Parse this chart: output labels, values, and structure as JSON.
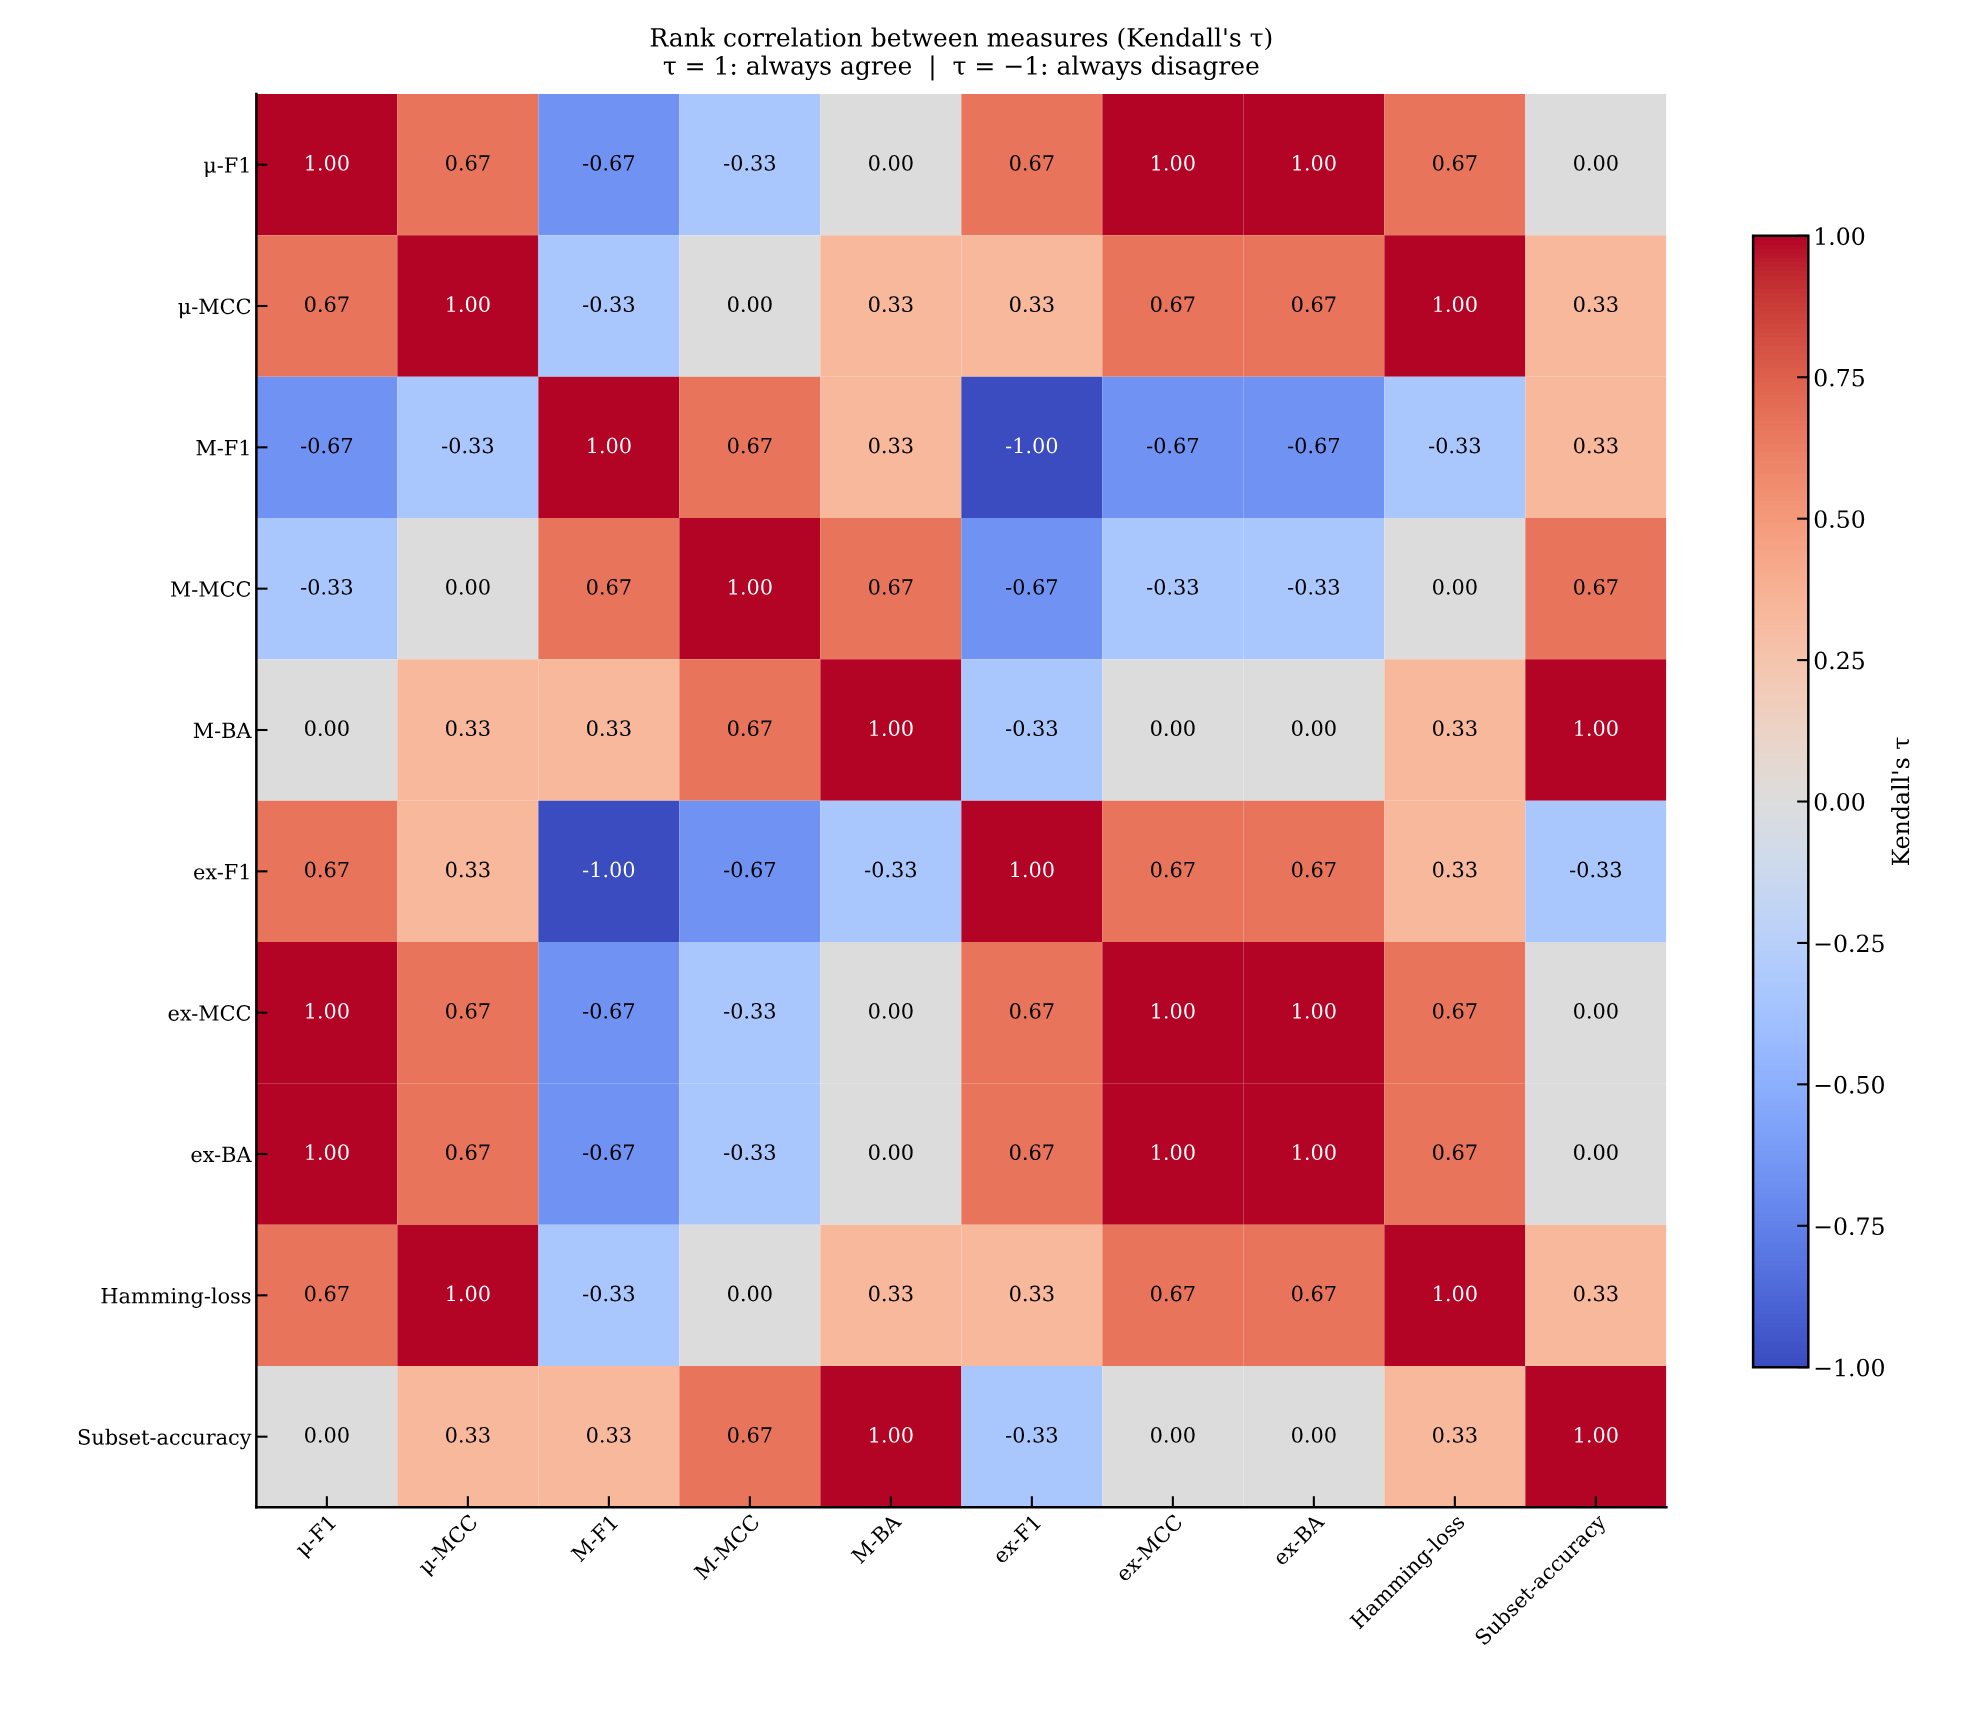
{
  "chart_data": {
    "type": "heatmap",
    "title": "Rank correlation between measures (Kendall's τ)",
    "subtitle": "τ = 1: always agree  |  τ = −1: always disagree",
    "categories": [
      "μ-F1",
      "μ-MCC",
      "M-F1",
      "M-MCC",
      "M-BA",
      "ex-F1",
      "ex-MCC",
      "ex-BA",
      "Hamming-loss",
      "Subset-accuracy"
    ],
    "y_categories": [
      "μ-F1",
      "μ-MCC",
      "M-F1",
      "M-MCC",
      "M-BA",
      "ex-F1",
      "ex-MCC",
      "ex-BA",
      "Hamming-loss",
      "Subset-accuracy"
    ],
    "cells": [
      [
        1.0,
        0.67,
        -0.67,
        -0.33,
        0.0,
        0.67,
        1.0,
        1.0,
        0.67,
        0.0
      ],
      [
        0.67,
        1.0,
        -0.33,
        0.0,
        0.33,
        0.33,
        0.67,
        0.67,
        1.0,
        0.33
      ],
      [
        -0.67,
        -0.33,
        1.0,
        0.67,
        0.33,
        -1.0,
        -0.67,
        -0.67,
        -0.33,
        0.33
      ],
      [
        -0.33,
        0.0,
        0.67,
        1.0,
        0.67,
        -0.67,
        -0.33,
        -0.33,
        0.0,
        0.67
      ],
      [
        0.0,
        0.33,
        0.33,
        0.67,
        1.0,
        -0.33,
        0.0,
        0.0,
        0.33,
        1.0
      ],
      [
        0.67,
        0.33,
        -1.0,
        -0.67,
        -0.33,
        1.0,
        0.67,
        0.67,
        0.33,
        -0.33
      ],
      [
        1.0,
        0.67,
        -0.67,
        -0.33,
        0.0,
        0.67,
        1.0,
        1.0,
        0.67,
        0.0
      ],
      [
        1.0,
        0.67,
        -0.67,
        -0.33,
        0.0,
        0.67,
        1.0,
        1.0,
        0.67,
        0.0
      ],
      [
        0.67,
        1.0,
        -0.33,
        0.0,
        0.33,
        0.33,
        0.67,
        0.67,
        1.0,
        0.33
      ],
      [
        0.0,
        0.33,
        0.33,
        0.67,
        1.0,
        -0.33,
        0.0,
        0.0,
        0.33,
        1.0
      ]
    ],
    "cell_labels": [
      [
        "1.00",
        "0.67",
        "-0.67",
        "-0.33",
        "0.00",
        "0.67",
        "1.00",
        "1.00",
        "0.67",
        "0.00"
      ],
      [
        "0.67",
        "1.00",
        "-0.33",
        "0.00",
        "0.33",
        "0.33",
        "0.67",
        "0.67",
        "1.00",
        "0.33"
      ],
      [
        "-0.67",
        "-0.33",
        "1.00",
        "0.67",
        "0.33",
        "-1.00",
        "-0.67",
        "-0.67",
        "-0.33",
        "0.33"
      ],
      [
        "-0.33",
        "0.00",
        "0.67",
        "1.00",
        "0.67",
        "-0.67",
        "-0.33",
        "-0.33",
        "0.00",
        "0.67"
      ],
      [
        "0.00",
        "0.33",
        "0.33",
        "0.67",
        "1.00",
        "-0.33",
        "0.00",
        "0.00",
        "0.33",
        "1.00"
      ],
      [
        "0.67",
        "0.33",
        "-1.00",
        "-0.67",
        "-0.33",
        "1.00",
        "0.67",
        "0.67",
        "0.33",
        "-0.33"
      ],
      [
        "1.00",
        "0.67",
        "-0.67",
        "-0.33",
        "0.00",
        "0.67",
        "1.00",
        "1.00",
        "0.67",
        "0.00"
      ],
      [
        "1.00",
        "0.67",
        "-0.67",
        "-0.33",
        "0.00",
        "0.67",
        "1.00",
        "1.00",
        "0.67",
        "0.00"
      ],
      [
        "0.67",
        "1.00",
        "-0.33",
        "0.00",
        "0.33",
        "0.33",
        "0.67",
        "0.67",
        "1.00",
        "0.33"
      ],
      [
        "0.00",
        "0.33",
        "0.33",
        "0.67",
        "1.00",
        "-0.33",
        "0.00",
        "0.00",
        "0.33",
        "1.00"
      ]
    ],
    "clabel": "Kendall's τ",
    "clim": [
      -1,
      1
    ],
    "cticks": [
      {
        "value": -1,
        "label": "−1.00"
      },
      {
        "value": -0.75,
        "label": "−0.75"
      },
      {
        "value": -0.5,
        "label": "−0.50"
      },
      {
        "value": -0.25,
        "label": "−0.25"
      },
      {
        "value": 0,
        "label": "0.00"
      },
      {
        "value": 0.25,
        "label": "0.25"
      },
      {
        "value": 0.5,
        "label": "0.50"
      },
      {
        "value": 0.75,
        "label": "0.75"
      },
      {
        "value": 1,
        "label": "1.00"
      }
    ]
  }
}
